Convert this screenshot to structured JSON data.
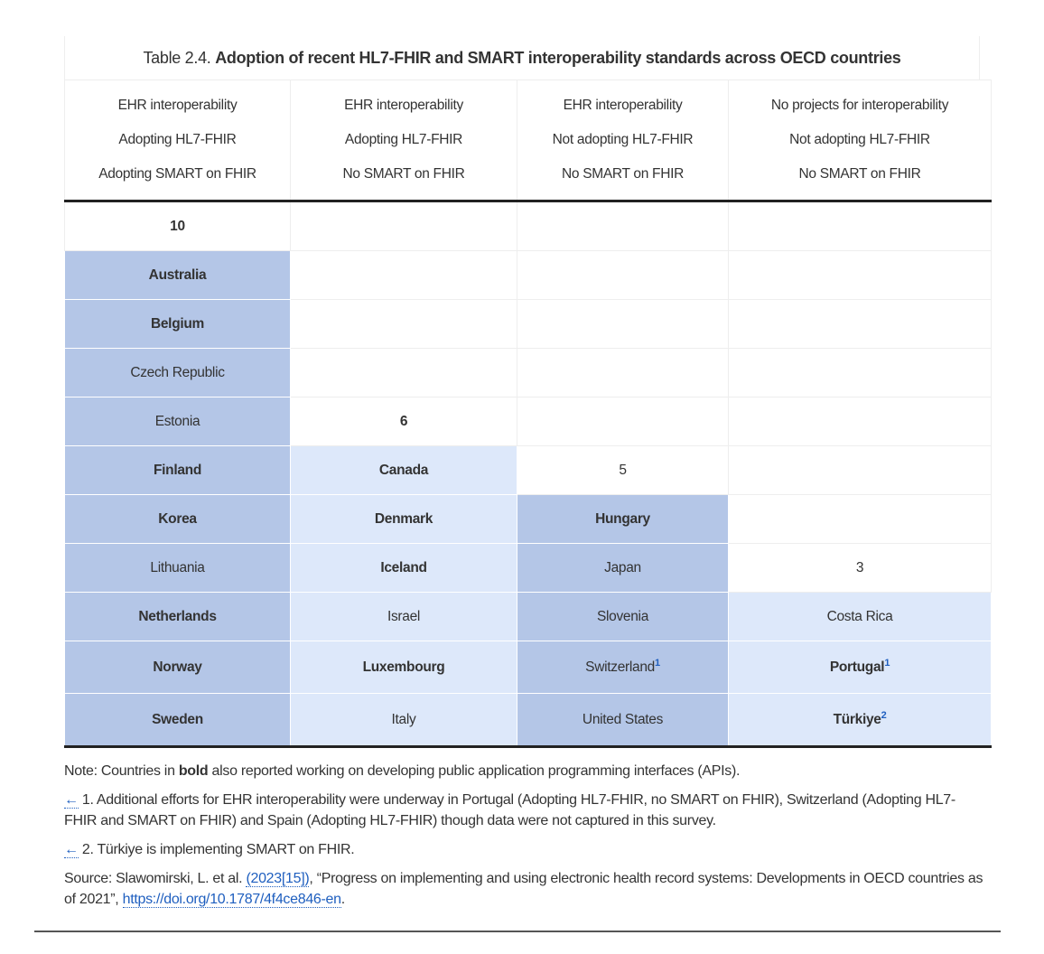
{
  "table": {
    "label": "Table 2.4.",
    "title": "Adoption of recent HL7-FHIR and SMART interoperability standards across OECD countries",
    "headers": [
      [
        "EHR interoperability",
        "Adopting HL7-FHIR",
        "Adopting SMART on FHIR"
      ],
      [
        "EHR interoperability",
        "Adopting HL7-FHIR",
        "No SMART on FHIR"
      ],
      [
        "EHR interoperability",
        "Not adopting HL7-FHIR",
        "No SMART on FHIR"
      ],
      [
        "No projects for interoperability",
        "Not adopting HL7-FHIR",
        "No SMART on FHIR"
      ]
    ],
    "colors": {
      "dark": "#b4c6e7",
      "light": "#dde8fa"
    },
    "columns": [
      {
        "count": "10",
        "count_bold": true,
        "fill": "dark",
        "countries": [
          {
            "name": "Australia",
            "bold": true
          },
          {
            "name": "Belgium",
            "bold": true
          },
          {
            "name": "Czech Republic",
            "bold": false
          },
          {
            "name": "Estonia",
            "bold": false
          },
          {
            "name": "Finland",
            "bold": true
          },
          {
            "name": "Korea",
            "bold": true
          },
          {
            "name": "Lithuania",
            "bold": false
          },
          {
            "name": "Netherlands",
            "bold": true
          },
          {
            "name": "Norway",
            "bold": true
          },
          {
            "name": "Sweden",
            "bold": true
          }
        ]
      },
      {
        "count": "6",
        "count_bold": true,
        "fill": "light",
        "countries": [
          {
            "name": "Canada",
            "bold": true
          },
          {
            "name": "Denmark",
            "bold": true
          },
          {
            "name": "Iceland",
            "bold": true
          },
          {
            "name": "Israel",
            "bold": false
          },
          {
            "name": "Luxembourg",
            "bold": true
          },
          {
            "name": "Italy",
            "bold": false
          }
        ]
      },
      {
        "count": "5",
        "count_bold": false,
        "fill": "dark",
        "countries": [
          {
            "name": "Hungary",
            "bold": true
          },
          {
            "name": "Japan",
            "bold": false
          },
          {
            "name": "Slovenia",
            "bold": false
          },
          {
            "name": "Switzerland",
            "bold": false,
            "note": "1"
          },
          {
            "name": "United States",
            "bold": false
          }
        ]
      },
      {
        "count": "3",
        "count_bold": false,
        "fill": "light",
        "countries": [
          {
            "name": "Costa Rica",
            "bold": false
          },
          {
            "name": "Portugal",
            "bold": true,
            "note": "1"
          },
          {
            "name": "Türkiye",
            "bold": true,
            "note": "2"
          }
        ]
      }
    ]
  },
  "notes": {
    "note_prefix": "Note: Countries in ",
    "note_bold": "bold",
    "note_suffix": " also reported working on developing public application programming interfaces (APIs).",
    "back_arrow": "←",
    "footnote1": " 1. Additional efforts for EHR interoperability were underway in Portugal (Adopting HL7-FHIR, no SMART on FHIR), Switzerland (Adopting HL7-FHIR and SMART on FHIR) and Spain (Adopting HL7-FHIR) though data were not captured in this survey.",
    "footnote2": " 2. Türkiye is implementing SMART on FHIR.",
    "source_prefix": "Source: Slawomirski, L. et al. ",
    "source_ref": "(2023[15])",
    "source_text": ", “Progress on implementing and using electronic health record systems: Developments in OECD countries as of 2021”, ",
    "source_link": "https://doi.org/10.1787/4f4ce846-en",
    "source_end": "."
  }
}
